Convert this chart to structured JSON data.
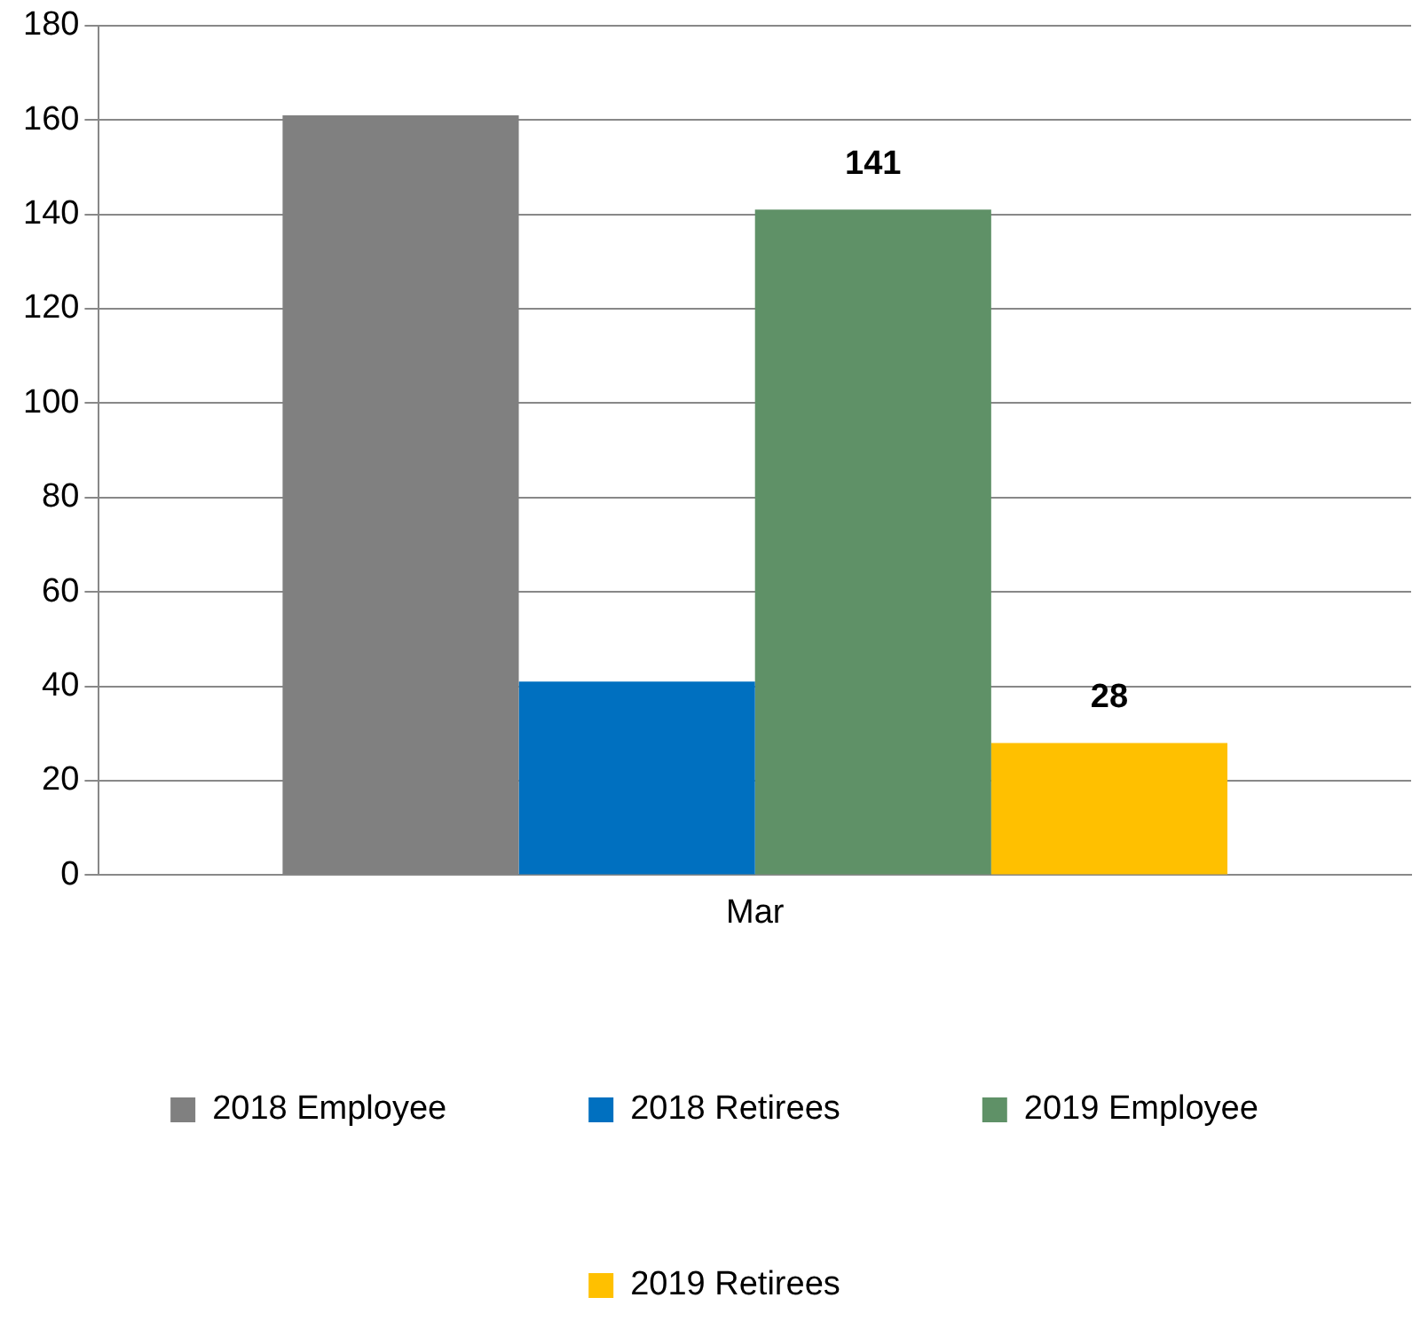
{
  "chart_data": {
    "type": "bar",
    "categories": [
      "Mar"
    ],
    "series": [
      {
        "name": "2018 Employee",
        "color": "#808080",
        "values": [
          161
        ]
      },
      {
        "name": "2018 Retirees",
        "color": "#0070c0",
        "values": [
          41
        ]
      },
      {
        "name": "2019 Employee",
        "color": "#5f9167",
        "values": [
          141
        ],
        "value_labels": [
          "141"
        ]
      },
      {
        "name": "2019 Retirees",
        "color": "#ffc000",
        "values": [
          28
        ],
        "value_labels": [
          "28"
        ]
      }
    ],
    "ylim": [
      0,
      180
    ],
    "yticks": [
      0,
      20,
      40,
      60,
      80,
      100,
      120,
      140,
      160,
      180
    ],
    "grid": "y",
    "legend": "bottom"
  }
}
